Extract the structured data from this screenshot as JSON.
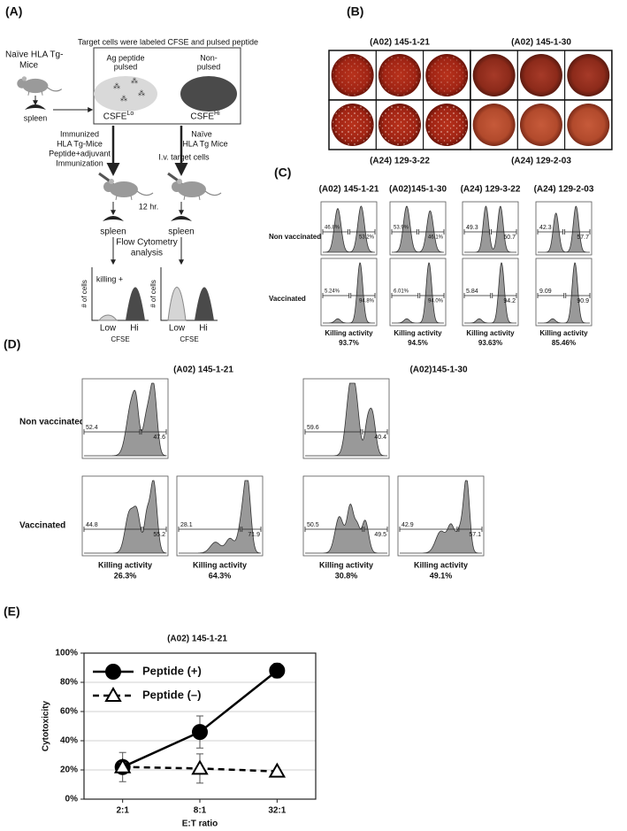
{
  "panel_a": {
    "label": "(A)",
    "mice": [
      "Naïve HLA Tg-",
      "Mice"
    ],
    "spleen_top": "spleen",
    "box_title": "Target cells were labeled CFSE and pulsed peptide",
    "pulsed": [
      "Ag peptide",
      "pulsed"
    ],
    "non_pulsed": [
      "Non-",
      "pulsed"
    ],
    "cfse_lo": {
      "name": "CSFE",
      "sup": "Lo"
    },
    "cfse_hi": {
      "name": "CSFE",
      "sup": "Hi"
    },
    "immunized": [
      "Immunized",
      "HLA Tg-Mice",
      "Peptide+adjuvant",
      "Immunization"
    ],
    "naive": [
      "Naïve",
      "HLA Tg Mice"
    ],
    "iv": "I.v. target cells",
    "time": "12 hr.",
    "spleens": [
      "spleen",
      "spleen"
    ],
    "flow": [
      "Flow Cytometry",
      "analysis"
    ],
    "histograms": [
      {
        "ylabel": "# of cells",
        "note": "killing +",
        "low": "Low",
        "hi": "Hi",
        "xlabel": "CFSE"
      },
      {
        "ylabel": "# of cells",
        "low": "Low",
        "hi": "Hi",
        "xlabel": "CFSE"
      }
    ]
  },
  "panel_b": {
    "label": "(B)",
    "top": [
      "(A02) 145-1-21",
      "(A02) 145-1-30"
    ],
    "bottom": [
      "(A24) 129-3-22",
      "(A24) 129-2-03"
    ]
  },
  "panel_c": {
    "label": "(C)",
    "columns": [
      "(A02) 145-1-21",
      "(A02)145-1-30",
      "(A24) 129-3-22",
      "(A24) 129-2-03"
    ],
    "rows": [
      "Non vaccinated",
      "Vaccinated"
    ],
    "non_vaccinated": [
      [
        "46.8%",
        "53.2%"
      ],
      [
        "53.9%",
        "46.1%"
      ],
      [
        "49.3",
        "50.7"
      ],
      [
        "42.3",
        "57.7"
      ]
    ],
    "vaccinated": [
      [
        "5.24%",
        "94.8%"
      ],
      [
        "6.01%",
        "94.0%"
      ],
      [
        "5.84",
        "94.2"
      ],
      [
        "9.09",
        "90.9"
      ]
    ],
    "killing_label": "Killing activity",
    "killing": [
      "93.7%",
      "94.5%",
      "93.63%",
      "85.46%"
    ]
  },
  "panel_d": {
    "label": "(D)",
    "columns": [
      "(A02) 145-1-21",
      "(A02)145-1-30"
    ],
    "rows": [
      "Non vaccinated",
      "Vaccinated"
    ],
    "non_vaccinated": [
      [
        "52.4",
        "47.6"
      ],
      [
        "59.6",
        "40.4"
      ]
    ],
    "vaccinated": [
      [
        "44.8",
        "55.2"
      ],
      [
        "28.1",
        "71.9"
      ],
      [
        "50.5",
        "49.5"
      ],
      [
        "42.9",
        "57.1"
      ]
    ],
    "killing_label": "Killing activity",
    "killing": [
      "26.3%",
      "64.3%",
      "30.8%",
      "49.1%"
    ]
  },
  "panel_e": {
    "label": "(E)"
  },
  "chart_data": {
    "type": "line",
    "title": "(A02) 145-1-21",
    "xlabel": "E:T ratio",
    "ylabel": "Cytotoxicity",
    "categories": [
      "2:1",
      "8:1",
      "32:1"
    ],
    "series": [
      {
        "name": "Peptide (+)",
        "color": "#000000",
        "values": [
          22,
          46,
          88
        ],
        "errors": [
          10,
          11,
          5
        ],
        "line_style": "solid",
        "marker": "circle",
        "marker_fill": "#000000"
      },
      {
        "name": "Peptide (–)",
        "color": "#000000",
        "values": [
          22,
          21,
          19
        ],
        "errors": [
          3,
          10,
          1
        ],
        "line_style": "dashed",
        "marker": "triangle",
        "marker_fill": "#ffffff"
      }
    ],
    "ylim": [
      0,
      100
    ],
    "yticks": [
      {
        "value": 0,
        "label": "0%"
      },
      {
        "value": 20,
        "label": "20%"
      },
      {
        "value": 40,
        "label": "40%"
      },
      {
        "value": 60,
        "label": "60%"
      },
      {
        "value": 80,
        "label": "80%"
      },
      {
        "value": 100,
        "label": "100%"
      }
    ],
    "grid": true,
    "legend": "upper left"
  }
}
